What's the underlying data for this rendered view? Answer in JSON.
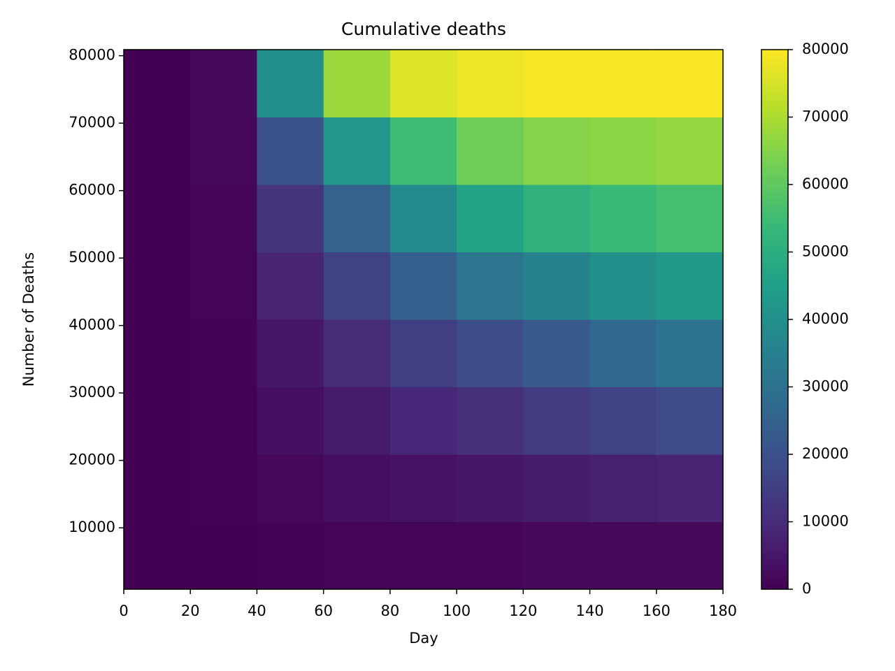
{
  "chart_data": {
    "type": "heatmap",
    "title": "Cumulative deaths",
    "x_label": "Day",
    "y_label": "Number of Deaths",
    "x_bins": [
      0,
      20,
      40,
      60,
      80,
      100,
      120,
      140,
      160,
      180
    ],
    "y_bins": [
      900,
      10900,
      20900,
      30900,
      40900,
      50900,
      60900,
      70900,
      80900
    ],
    "z": [
      [
        0,
        100,
        500,
        800,
        1000,
        1200,
        1500,
        1800,
        2000
      ],
      [
        0,
        200,
        1500,
        3000,
        4000,
        5000,
        6000,
        7000,
        8000
      ],
      [
        0,
        300,
        3000,
        6000,
        9000,
        11000,
        14000,
        16000,
        18000
      ],
      [
        0,
        500,
        5000,
        10000,
        15000,
        19000,
        23000,
        27000,
        30000
      ],
      [
        0,
        800,
        8000,
        16000,
        24000,
        31000,
        36000,
        40000,
        43000
      ],
      [
        0,
        1000,
        12000,
        25000,
        38000,
        46000,
        51000,
        54000,
        56000
      ],
      [
        0,
        1500,
        20000,
        42000,
        55000,
        62000,
        65000,
        66000,
        67000
      ],
      [
        0,
        2000,
        40000,
        68000,
        76000,
        78000,
        79000,
        79000,
        79500
      ]
    ],
    "xlim": [
      0,
      180
    ],
    "xticks": [
      0,
      20,
      40,
      60,
      80,
      100,
      120,
      140,
      160,
      180
    ],
    "ylim": [
      900,
      80900
    ],
    "yticks": [
      10000,
      20000,
      30000,
      40000,
      50000,
      60000,
      70000,
      80000
    ],
    "colormap": "viridis",
    "clim": [
      0,
      80000
    ],
    "cticks": [
      0,
      10000,
      20000,
      30000,
      40000,
      50000,
      60000,
      70000,
      80000
    ]
  }
}
